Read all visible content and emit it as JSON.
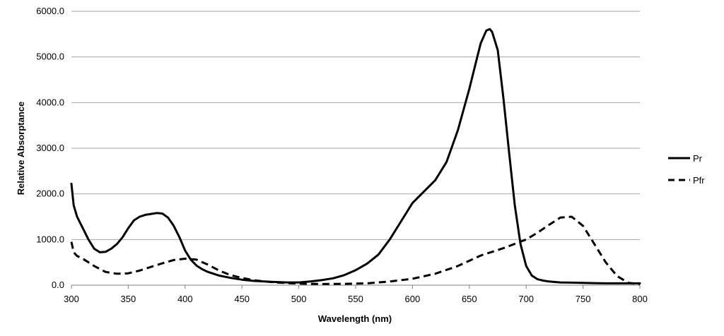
{
  "chart_data": {
    "type": "line",
    "title": "",
    "xlabel": "Wavelength (nm)",
    "ylabel": "Relative Absorptance",
    "xlim": [
      300,
      800
    ],
    "ylim": [
      0,
      6000
    ],
    "x_ticks": [
      300,
      350,
      400,
      450,
      500,
      550,
      600,
      650,
      700,
      750,
      800
    ],
    "x_tick_labels": [
      "300",
      "350",
      "400",
      "450",
      "500",
      "550",
      "600",
      "650",
      "700",
      "750",
      "800"
    ],
    "y_ticks": [
      0,
      1000,
      2000,
      3000,
      4000,
      5000,
      6000
    ],
    "y_tick_labels": [
      "0.0",
      "1000.0",
      "2000.0",
      "3000.0",
      "4000.0",
      "5000.0",
      "6000.0"
    ],
    "grid": "horizontal",
    "legend_position": "right",
    "series": [
      {
        "name": "Pr",
        "style": "solid",
        "color": "#000000",
        "x": [
          300,
          302,
          305,
          310,
          315,
          320,
          325,
          330,
          335,
          340,
          345,
          350,
          355,
          360,
          365,
          370,
          375,
          380,
          385,
          390,
          395,
          400,
          405,
          410,
          415,
          420,
          430,
          440,
          450,
          460,
          470,
          480,
          490,
          500,
          510,
          520,
          530,
          540,
          550,
          560,
          570,
          580,
          590,
          600,
          610,
          620,
          630,
          640,
          650,
          655,
          660,
          665,
          668,
          670,
          675,
          680,
          685,
          690,
          695,
          700,
          705,
          710,
          715,
          720,
          730,
          740,
          750,
          760,
          770,
          780,
          790,
          800
        ],
        "y": [
          2220,
          1750,
          1500,
          1250,
          1000,
          800,
          720,
          730,
          800,
          900,
          1050,
          1250,
          1420,
          1500,
          1540,
          1560,
          1580,
          1570,
          1480,
          1300,
          1050,
          760,
          560,
          430,
          350,
          290,
          210,
          160,
          120,
          95,
          80,
          70,
          60,
          60,
          80,
          110,
          150,
          220,
          330,
          470,
          670,
          1000,
          1400,
          1800,
          2050,
          2300,
          2700,
          3400,
          4300,
          4800,
          5300,
          5580,
          5610,
          5550,
          5150,
          4100,
          2900,
          1750,
          900,
          420,
          210,
          130,
          100,
          80,
          60,
          55,
          50,
          45,
          40,
          40,
          40,
          40
        ]
      },
      {
        "name": "Pfr",
        "style": "dashed",
        "color": "#000000",
        "x": [
          300,
          302,
          305,
          310,
          320,
          330,
          340,
          350,
          360,
          370,
          380,
          390,
          400,
          410,
          420,
          430,
          440,
          450,
          460,
          470,
          480,
          490,
          500,
          510,
          520,
          540,
          560,
          580,
          600,
          620,
          640,
          660,
          680,
          700,
          710,
          720,
          730,
          740,
          750,
          760,
          770,
          780,
          790,
          800
        ],
        "y": [
          950,
          720,
          640,
          580,
          420,
          290,
          250,
          260,
          320,
          400,
          480,
          550,
          580,
          560,
          450,
          320,
          220,
          160,
          110,
          80,
          60,
          45,
          35,
          30,
          25,
          30,
          40,
          80,
          140,
          250,
          420,
          650,
          810,
          1000,
          1150,
          1320,
          1480,
          1500,
          1300,
          900,
          500,
          200,
          50,
          20
        ]
      }
    ]
  }
}
